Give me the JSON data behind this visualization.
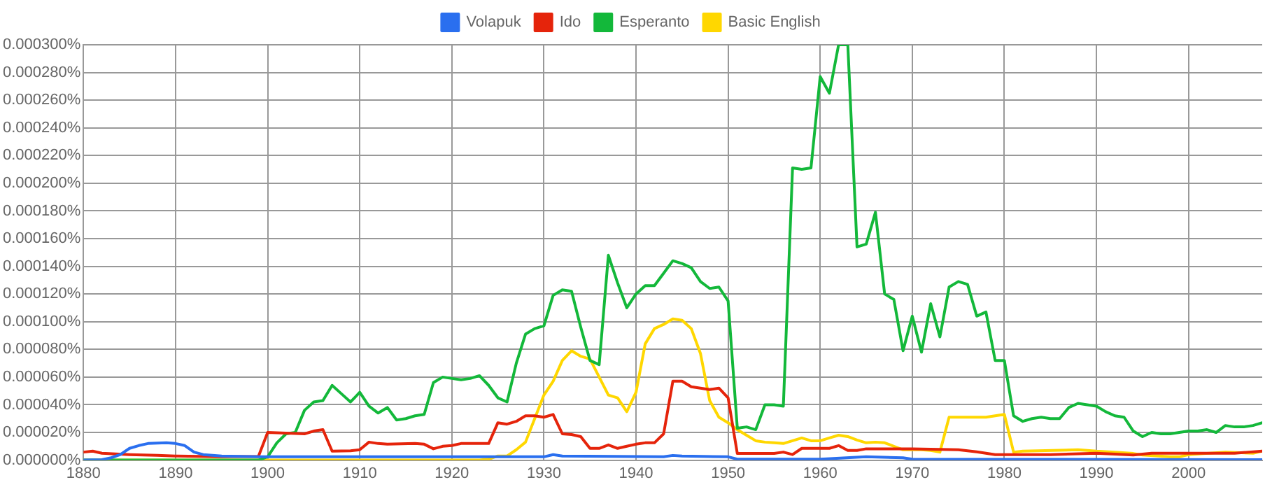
{
  "chart_data": {
    "type": "line",
    "legend": "top",
    "grid": true,
    "marker": "none",
    "line_style": "solid",
    "xlim": [
      1880,
      2008
    ],
    "xticks": [
      1880,
      1890,
      1900,
      1910,
      1920,
      1930,
      1940,
      1950,
      1960,
      1970,
      1980,
      1990,
      2000
    ],
    "ylim": [
      0,
      0.0003
    ],
    "yticks": [
      {
        "value": 0,
        "label": "0.000000%"
      },
      {
        "value": 2e-05,
        "label": "0.000020%"
      },
      {
        "value": 4e-05,
        "label": "0.000040%"
      },
      {
        "value": 6e-05,
        "label": "0.000060%"
      },
      {
        "value": 8e-05,
        "label": "0.000080%"
      },
      {
        "value": 0.0001,
        "label": "0.000100%"
      },
      {
        "value": 0.00012,
        "label": "0.000120%"
      },
      {
        "value": 0.00014,
        "label": "0.000140%"
      },
      {
        "value": 0.00016,
        "label": "0.000160%"
      },
      {
        "value": 0.00018,
        "label": "0.000180%"
      },
      {
        "value": 0.0002,
        "label": "0.000200%"
      },
      {
        "value": 0.00022,
        "label": "0.000220%"
      },
      {
        "value": 0.00024,
        "label": "0.000240%"
      },
      {
        "value": 0.00026,
        "label": "0.000260%"
      },
      {
        "value": 0.00028,
        "label": "0.000280%"
      },
      {
        "value": 0.0003,
        "label": "0.000300%"
      }
    ],
    "series": [
      {
        "name": "Volapuk",
        "color": "#2a6fef",
        "x": [
          1880,
          1882,
          1883,
          1884,
          1885,
          1886,
          1887,
          1889,
          1890,
          1891,
          1892,
          1893,
          1895,
          1899,
          1930,
          1931,
          1932,
          1943,
          1944,
          1945,
          1950,
          1951,
          1960,
          1965,
          1969,
          1970,
          2008
        ],
        "values": [
          0,
          3e-07,
          1.7e-06,
          4e-06,
          8.5e-06,
          1.05e-05,
          1.2e-05,
          1.26e-05,
          1.2e-05,
          1.05e-05,
          5.8e-06,
          4e-06,
          3e-06,
          2.4e-06,
          2.4e-06,
          4e-06,
          3e-06,
          2.4e-06,
          3.4e-06,
          3e-06,
          2.4e-06,
          7e-07,
          7e-07,
          2.4e-06,
          1.7e-06,
          7e-07,
          3e-07
        ]
      },
      {
        "name": "Ido",
        "color": "#e5240b",
        "x": [
          1880,
          1881,
          1882,
          1885,
          1888,
          1890,
          1895,
          1899,
          1900,
          1904,
          1905,
          1906,
          1907,
          1909,
          1910,
          1911,
          1912,
          1913,
          1916,
          1917,
          1918,
          1919,
          1920,
          1921,
          1924,
          1925,
          1926,
          1927,
          1928,
          1929,
          1930,
          1931,
          1932,
          1933,
          1934,
          1935,
          1936,
          1937,
          1938,
          1939,
          1940,
          1941,
          1942,
          1943,
          1944,
          1945,
          1946,
          1947,
          1948,
          1949,
          1950,
          1951,
          1955,
          1956,
          1957,
          1958,
          1961,
          1962,
          1963,
          1964,
          1965,
          1970,
          1975,
          1977,
          1979,
          1985,
          1990,
          1994,
          1996,
          2005,
          2008
        ],
        "values": [
          5.8e-06,
          6.5e-06,
          5e-06,
          4e-06,
          3.4e-06,
          3e-06,
          2.4e-06,
          2.7e-06,
          2e-05,
          1.9e-05,
          2.1e-05,
          2.2e-05,
          6.5e-06,
          6.8e-06,
          7.5e-06,
          1.3e-05,
          1.2e-05,
          1.15e-05,
          1.2e-05,
          1.15e-05,
          8.2e-06,
          1e-05,
          1.05e-05,
          1.2e-05,
          1.2e-05,
          2.7e-05,
          2.6e-05,
          2.8e-05,
          3.2e-05,
          3.2e-05,
          3.1e-05,
          3.3e-05,
          1.9e-05,
          1.85e-05,
          1.7e-05,
          8.5e-06,
          8.5e-06,
          1.1e-05,
          8.5e-06,
          1e-05,
          1.15e-05,
          1.25e-05,
          1.25e-05,
          1.9e-05,
          5.7e-05,
          5.7e-05,
          5.3e-05,
          5.2e-05,
          5.1e-05,
          5.2e-05,
          4.5e-05,
          4.8e-06,
          4.8e-06,
          5.8e-06,
          4e-06,
          8.5e-06,
          8.5e-06,
          1.05e-05,
          7e-06,
          7e-06,
          8.2e-06,
          8.2e-06,
          7.5e-06,
          6e-06,
          4e-06,
          4e-06,
          5e-06,
          3.7e-06,
          5e-06,
          5e-06,
          6.5e-06
        ]
      },
      {
        "name": "Esperanto",
        "color": "#13b83a",
        "x": [
          1880,
          1899,
          1900,
          1901,
          1902,
          1903,
          1904,
          1905,
          1906,
          1907,
          1908,
          1909,
          1910,
          1911,
          1912,
          1913,
          1914,
          1915,
          1916,
          1917,
          1918,
          1919,
          1920,
          1921,
          1922,
          1923,
          1924,
          1925,
          1926,
          1927,
          1928,
          1929,
          1930,
          1931,
          1932,
          1933,
          1934,
          1935,
          1936,
          1937,
          1938,
          1939,
          1940,
          1941,
          1942,
          1943,
          1944,
          1945,
          1946,
          1947,
          1948,
          1949,
          1950,
          1951,
          1952,
          1953,
          1954,
          1955,
          1956,
          1957,
          1958,
          1959,
          1960,
          1961,
          1962,
          1963,
          1964,
          1965,
          1966,
          1967,
          1968,
          1969,
          1970,
          1971,
          1972,
          1973,
          1974,
          1975,
          1976,
          1977,
          1978,
          1979,
          1980,
          1981,
          1982,
          1983,
          1984,
          1985,
          1986,
          1987,
          1988,
          1989,
          1990,
          1991,
          1992,
          1993,
          1994,
          1995,
          1996,
          1997,
          1998,
          1999,
          2000,
          2001,
          2002,
          2003,
          2004,
          2005,
          2006,
          2007,
          2008
        ],
        "values": [
          0,
          0,
          2.4e-06,
          1.25e-05,
          1.9e-05,
          2e-05,
          3.6e-05,
          4.2e-05,
          4.3e-05,
          5.4e-05,
          4.8e-05,
          4.2e-05,
          4.9e-05,
          3.9e-05,
          3.4e-05,
          3.8e-05,
          2.9e-05,
          3e-05,
          3.2e-05,
          3.3e-05,
          5.6e-05,
          6e-05,
          5.9e-05,
          5.8e-05,
          5.9e-05,
          6.1e-05,
          5.4e-05,
          4.5e-05,
          4.2e-05,
          7e-05,
          9.1e-05,
          9.5e-05,
          9.7e-05,
          0.000119,
          0.000123,
          0.000122,
          9.6e-05,
          7.2e-05,
          6.9e-05,
          0.000148,
          0.000128,
          0.00011,
          0.00012,
          0.000126,
          0.000126,
          0.000135,
          0.000144,
          0.000142,
          0.000139,
          0.000129,
          0.000124,
          0.000125,
          0.000115,
          2.3e-05,
          2.4e-05,
          2.2e-05,
          4e-05,
          4e-05,
          3.9e-05,
          0.000211,
          0.00021,
          0.000211,
          0.000277,
          0.000265,
          0.0003,
          0.0003,
          0.000154,
          0.000156,
          0.000179,
          0.00012,
          0.000116,
          7.9e-05,
          0.000104,
          7.8e-05,
          0.000113,
          8.9e-05,
          0.000125,
          0.000129,
          0.000127,
          0.000104,
          0.000107,
          7.2e-05,
          7.2e-05,
          3.2e-05,
          2.8e-05,
          3e-05,
          3.1e-05,
          3e-05,
          3e-05,
          3.8e-05,
          4.1e-05,
          4e-05,
          3.9e-05,
          3.5e-05,
          3.2e-05,
          3.1e-05,
          2.1e-05,
          1.7e-05,
          2e-05,
          1.9e-05,
          1.9e-05,
          2e-05,
          2.1e-05,
          2.1e-05,
          2.2e-05,
          2e-05,
          2.5e-05,
          2.4e-05,
          2.4e-05,
          2.5e-05,
          2.7e-05
        ]
      },
      {
        "name": "Basic English",
        "color": "#ffd700",
        "x": [
          1880,
          1923,
          1924,
          1925,
          1926,
          1927,
          1928,
          1929,
          1930,
          1931,
          1932,
          1933,
          1934,
          1935,
          1936,
          1937,
          1938,
          1939,
          1940,
          1941,
          1942,
          1943,
          1944,
          1945,
          1946,
          1947,
          1948,
          1949,
          1950,
          1951,
          1952,
          1953,
          1954,
          1955,
          1956,
          1957,
          1958,
          1959,
          1960,
          1961,
          1962,
          1963,
          1964,
          1965,
          1966,
          1967,
          1968,
          1969,
          1970,
          1971,
          1972,
          1973,
          1974,
          1975,
          1976,
          1977,
          1978,
          1979,
          1980,
          1981,
          1982,
          1988,
          1990,
          1992,
          1994,
          1995,
          1998,
          1999,
          2000,
          2004,
          2007,
          2008
        ],
        "values": [
          0,
          0,
          7e-07,
          3e-06,
          3e-06,
          7.5e-06,
          1.3e-05,
          3e-05,
          4.7e-05,
          5.7e-05,
          7.2e-05,
          7.9e-05,
          7.5e-05,
          7.3e-05,
          6e-05,
          4.7e-05,
          4.5e-05,
          3.5e-05,
          4.9e-05,
          8.4e-05,
          9.5e-05,
          9.8e-05,
          0.000102,
          0.000101,
          9.5e-05,
          7.7e-05,
          4.3e-05,
          3.1e-05,
          2.7e-05,
          2.2e-05,
          1.8e-05,
          1.4e-05,
          1.3e-05,
          1.25e-05,
          1.2e-05,
          1.4e-05,
          1.6e-05,
          1.4e-05,
          1.4e-05,
          1.6e-05,
          1.8e-05,
          1.7e-05,
          1.45e-05,
          1.25e-05,
          1.3e-05,
          1.25e-05,
          1e-05,
          7.5e-06,
          7.5e-06,
          7.5e-06,
          7e-06,
          5.8e-06,
          3.1e-05,
          3.1e-05,
          3.1e-05,
          3.1e-05,
          3.1e-05,
          3.2e-05,
          3.3e-05,
          5.8e-06,
          6.5e-06,
          7.5e-06,
          6.5e-06,
          5.8e-06,
          4.8e-06,
          3.7e-06,
          2.4e-06,
          2.4e-06,
          4e-06,
          5.8e-06,
          5e-06,
          6.5e-06
        ]
      }
    ]
  }
}
